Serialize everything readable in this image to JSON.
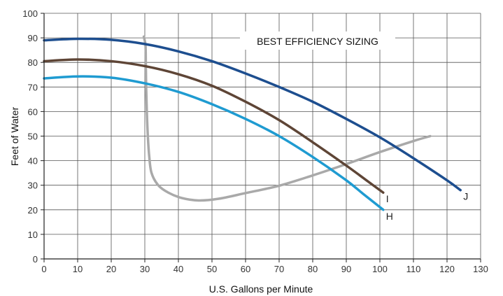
{
  "chart_data": {
    "type": "line",
    "title": "",
    "xlabel": "U.S. Gallons per Minute",
    "ylabel": "Feet of Water",
    "xlim": [
      0,
      130
    ],
    "ylim": [
      0,
      100
    ],
    "x_ticks": [
      0,
      10,
      20,
      30,
      40,
      50,
      60,
      70,
      80,
      90,
      100,
      110,
      120,
      130
    ],
    "y_ticks": [
      0,
      10,
      20,
      30,
      40,
      50,
      60,
      70,
      80,
      90,
      100
    ],
    "grid": true,
    "annotation": "BEST EFFICIENCY SIZING",
    "series": [
      {
        "name": "J",
        "color": "#1d4e8f",
        "points": [
          [
            0,
            89
          ],
          [
            10,
            89.6
          ],
          [
            20,
            89.2
          ],
          [
            30,
            87.5
          ],
          [
            40,
            84.5
          ],
          [
            50,
            80.5
          ],
          [
            60,
            75.5
          ],
          [
            70,
            70
          ],
          [
            80,
            64
          ],
          [
            90,
            57
          ],
          [
            100,
            49.5
          ],
          [
            110,
            41
          ],
          [
            120,
            32
          ],
          [
            124,
            28
          ]
        ]
      },
      {
        "name": "I",
        "color": "#5e4536",
        "points": [
          [
            0,
            80.5
          ],
          [
            10,
            81.2
          ],
          [
            20,
            80.5
          ],
          [
            30,
            78.5
          ],
          [
            40,
            75.2
          ],
          [
            50,
            70.5
          ],
          [
            60,
            64
          ],
          [
            70,
            56.5
          ],
          [
            80,
            47.5
          ],
          [
            90,
            38
          ],
          [
            96,
            32
          ],
          [
            101,
            27
          ]
        ]
      },
      {
        "name": "H",
        "color": "#1f9bd1",
        "points": [
          [
            0,
            73.5
          ],
          [
            10,
            74.3
          ],
          [
            20,
            73.8
          ],
          [
            30,
            71.5
          ],
          [
            40,
            68
          ],
          [
            50,
            63
          ],
          [
            60,
            57
          ],
          [
            70,
            50
          ],
          [
            80,
            41.5
          ],
          [
            90,
            32
          ],
          [
            95,
            26.5
          ],
          [
            101,
            20
          ]
        ]
      },
      {
        "name": "",
        "color": "#a9a9a9",
        "points": [
          [
            29.7,
            90.5
          ],
          [
            30.2,
            87
          ],
          [
            30.3,
            80
          ],
          [
            30.4,
            70
          ],
          [
            30.6,
            60
          ],
          [
            30.9,
            50
          ],
          [
            31.3,
            42
          ],
          [
            32,
            35
          ],
          [
            34,
            30
          ],
          [
            37,
            27
          ],
          [
            41,
            24.8
          ],
          [
            46,
            23.8
          ],
          [
            52,
            24.5
          ],
          [
            60,
            26.8
          ],
          [
            70,
            29.8
          ],
          [
            80,
            34
          ],
          [
            90,
            38.6
          ],
          [
            100,
            43.5
          ],
          [
            110,
            48
          ],
          [
            115,
            50
          ]
        ]
      }
    ]
  }
}
